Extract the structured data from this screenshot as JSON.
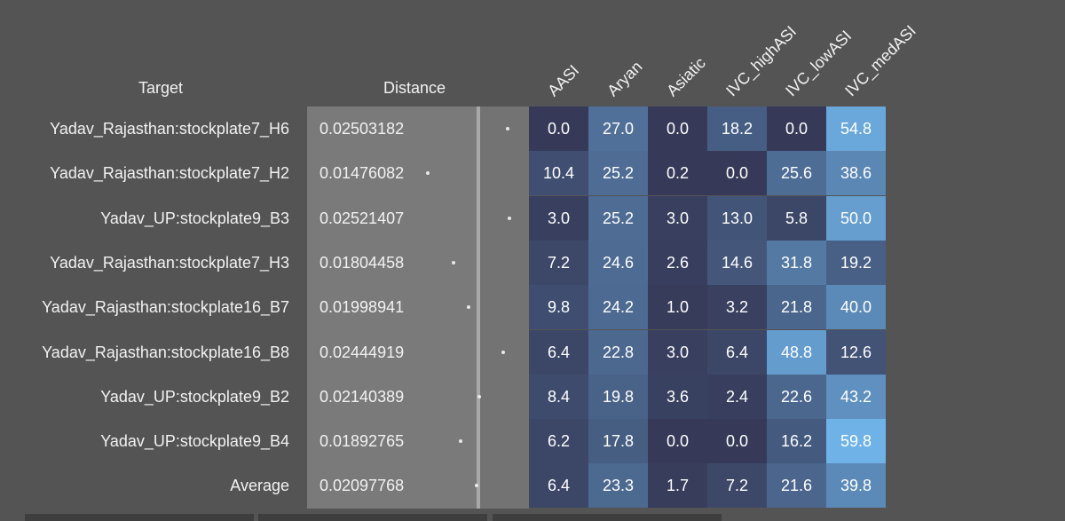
{
  "headers": {
    "target": "Target",
    "distance": "Distance",
    "columns": [
      "AASI",
      "Aryan",
      "Asiatic",
      "IVC_highASI",
      "IVC_lowASI",
      "IVC_medASI"
    ]
  },
  "rows": [
    {
      "target": "Yadav_Rajasthan:stockplate7_H6",
      "distance": "0.02503182",
      "values": [
        "0.0",
        "27.0",
        "0.0",
        "18.2",
        "0.0",
        "54.8"
      ]
    },
    {
      "target": "Yadav_Rajasthan:stockplate7_H2",
      "distance": "0.01476082",
      "values": [
        "10.4",
        "25.2",
        "0.2",
        "0.0",
        "25.6",
        "38.6"
      ]
    },
    {
      "target": "Yadav_UP:stockplate9_B3",
      "distance": "0.02521407",
      "values": [
        "3.0",
        "25.2",
        "3.0",
        "13.0",
        "5.8",
        "50.0"
      ]
    },
    {
      "target": "Yadav_Rajasthan:stockplate7_H3",
      "distance": "0.01804458",
      "values": [
        "7.2",
        "24.6",
        "2.6",
        "14.6",
        "31.8",
        "19.2"
      ]
    },
    {
      "target": "Yadav_Rajasthan:stockplate16_B7",
      "distance": "0.01998941",
      "values": [
        "9.8",
        "24.2",
        "1.0",
        "3.2",
        "21.8",
        "40.0"
      ]
    },
    {
      "target": "Yadav_Rajasthan:stockplate16_B8",
      "distance": "0.02444919",
      "values": [
        "6.4",
        "22.8",
        "3.0",
        "6.4",
        "48.8",
        "12.6"
      ]
    },
    {
      "target": "Yadav_UP:stockplate9_B2",
      "distance": "0.02140389",
      "values": [
        "8.4",
        "19.8",
        "3.6",
        "2.4",
        "22.6",
        "43.2"
      ]
    },
    {
      "target": "Yadav_UP:stockplate9_B4",
      "distance": "0.01892765",
      "values": [
        "6.2",
        "17.8",
        "0.0",
        "0.0",
        "16.2",
        "59.8"
      ]
    },
    {
      "target": "Average",
      "distance": "0.02097768",
      "values": [
        "6.4",
        "23.3",
        "1.7",
        "7.2",
        "21.6",
        "39.8"
      ]
    }
  ],
  "colors": {
    "background": "#545454",
    "heat_low": "#363a58",
    "heat_high": "#6fb2e8",
    "distance_panel": "#737373",
    "distance_marker": "#a8a8a8"
  }
}
